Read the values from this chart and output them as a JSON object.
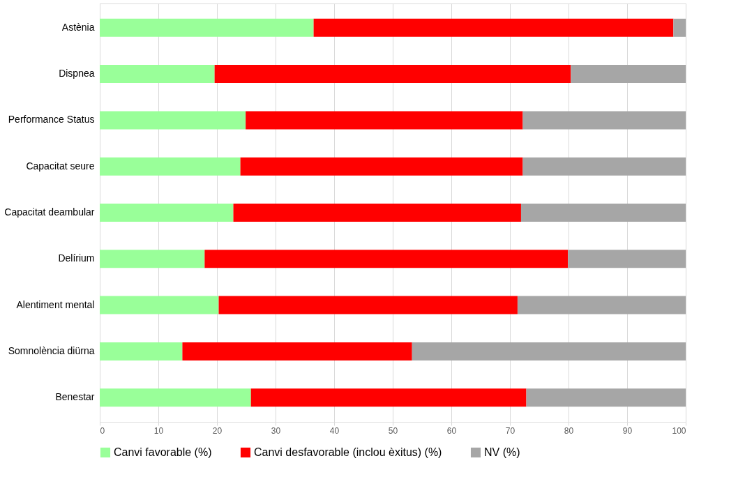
{
  "chart_data": {
    "type": "bar",
    "orientation": "horizontal",
    "stacked": true,
    "categories": [
      "Astènia",
      "Dispnea",
      "Performance Status",
      "Capacitat seure",
      "Capacitat deambular",
      "Delírium",
      "Alentiment mental",
      "Somnolència diürna",
      "Benestar"
    ],
    "series": [
      {
        "name": "Canvi favorable (%)",
        "color": "#99ff99",
        "values": [
          36.5,
          19.6,
          24.9,
          24.0,
          22.8,
          17.9,
          20.3,
          14.1,
          25.8
        ]
      },
      {
        "name": "Canvi desfavorable (inclou èxitus) (%)",
        "color": "#ff0000",
        "values": [
          61.4,
          60.8,
          47.3,
          48.2,
          49.1,
          62.0,
          51.0,
          39.2,
          47.0
        ]
      },
      {
        "name": "NV (%)",
        "color": "#a6a6a6",
        "values": [
          2.1,
          19.6,
          27.8,
          27.8,
          28.1,
          20.1,
          28.7,
          46.7,
          27.2
        ]
      }
    ],
    "xlim": [
      0,
      100
    ],
    "xticks": [
      0,
      10,
      20,
      30,
      40,
      50,
      60,
      70,
      80,
      90,
      100
    ],
    "grid": "x",
    "legend": "bottom"
  }
}
